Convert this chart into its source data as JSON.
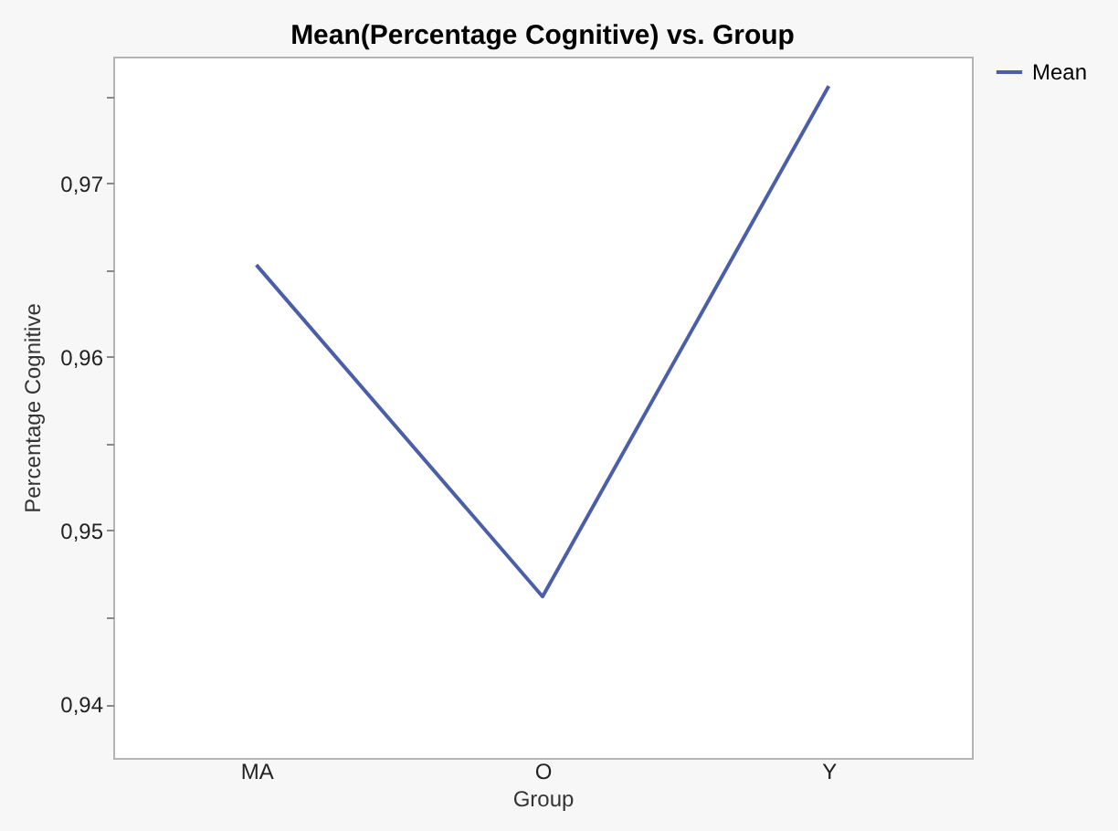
{
  "chart_data": {
    "type": "line",
    "title": "Mean(Percentage Cognitive) vs. Group",
    "xlabel": "Group",
    "ylabel": "Percentage Cognitive",
    "categories": [
      "MA",
      "O",
      "Y"
    ],
    "series": [
      {
        "name": "Mean",
        "color": "#4a5fa8",
        "values": [
          0.9653,
          0.9462,
          0.9756
        ]
      }
    ],
    "ylim": [
      0.9369,
      0.9773
    ],
    "yticks": [
      {
        "value": 0.94,
        "label": "0,94"
      },
      {
        "value": 0.945,
        "label": null
      },
      {
        "value": 0.95,
        "label": "0,95"
      },
      {
        "value": 0.955,
        "label": null
      },
      {
        "value": 0.96,
        "label": "0,96"
      },
      {
        "value": 0.965,
        "label": null
      },
      {
        "value": 0.97,
        "label": "0,97"
      },
      {
        "value": 0.975,
        "label": null
      }
    ],
    "legend": "right",
    "grid": false,
    "line_style": "solid",
    "marker": "none"
  }
}
